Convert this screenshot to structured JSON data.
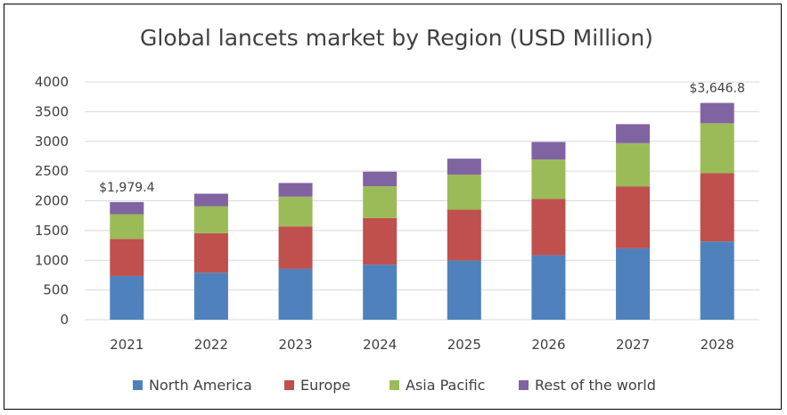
{
  "chart_data": {
    "type": "bar",
    "stacked": true,
    "title": "Global lancets market by Region (USD Million)",
    "categories": [
      "2021",
      "2022",
      "2023",
      "2024",
      "2025",
      "2026",
      "2027",
      "2028"
    ],
    "ylim": [
      0,
      4000
    ],
    "yticks": [
      "0",
      "500",
      "1000",
      "1500",
      "2000",
      "2500",
      "3000",
      "3500",
      "4000"
    ],
    "grid": true,
    "legend_position": "bottom",
    "series": [
      {
        "name": "North America",
        "color": "#4f81bd",
        "values": [
          735,
          790,
          855,
          925,
          995,
          1085,
          1200,
          1315
        ]
      },
      {
        "name": "Europe",
        "color": "#c0504d",
        "values": [
          625,
          665,
          715,
          785,
          855,
          945,
          1040,
          1150
        ]
      },
      {
        "name": "Asia Pacific",
        "color": "#9bbb59",
        "values": [
          415,
          455,
          500,
          535,
          590,
          665,
          730,
          840
        ]
      },
      {
        "name": "Rest of the world",
        "color": "#8064a2",
        "values": [
          204.4,
          210,
          230,
          245,
          270,
          295,
          320,
          341.8
        ]
      }
    ],
    "data_labels": [
      {
        "category": "2021",
        "text": "$1,979.4"
      },
      {
        "category": "2028",
        "text": "$3,646.8"
      }
    ]
  }
}
